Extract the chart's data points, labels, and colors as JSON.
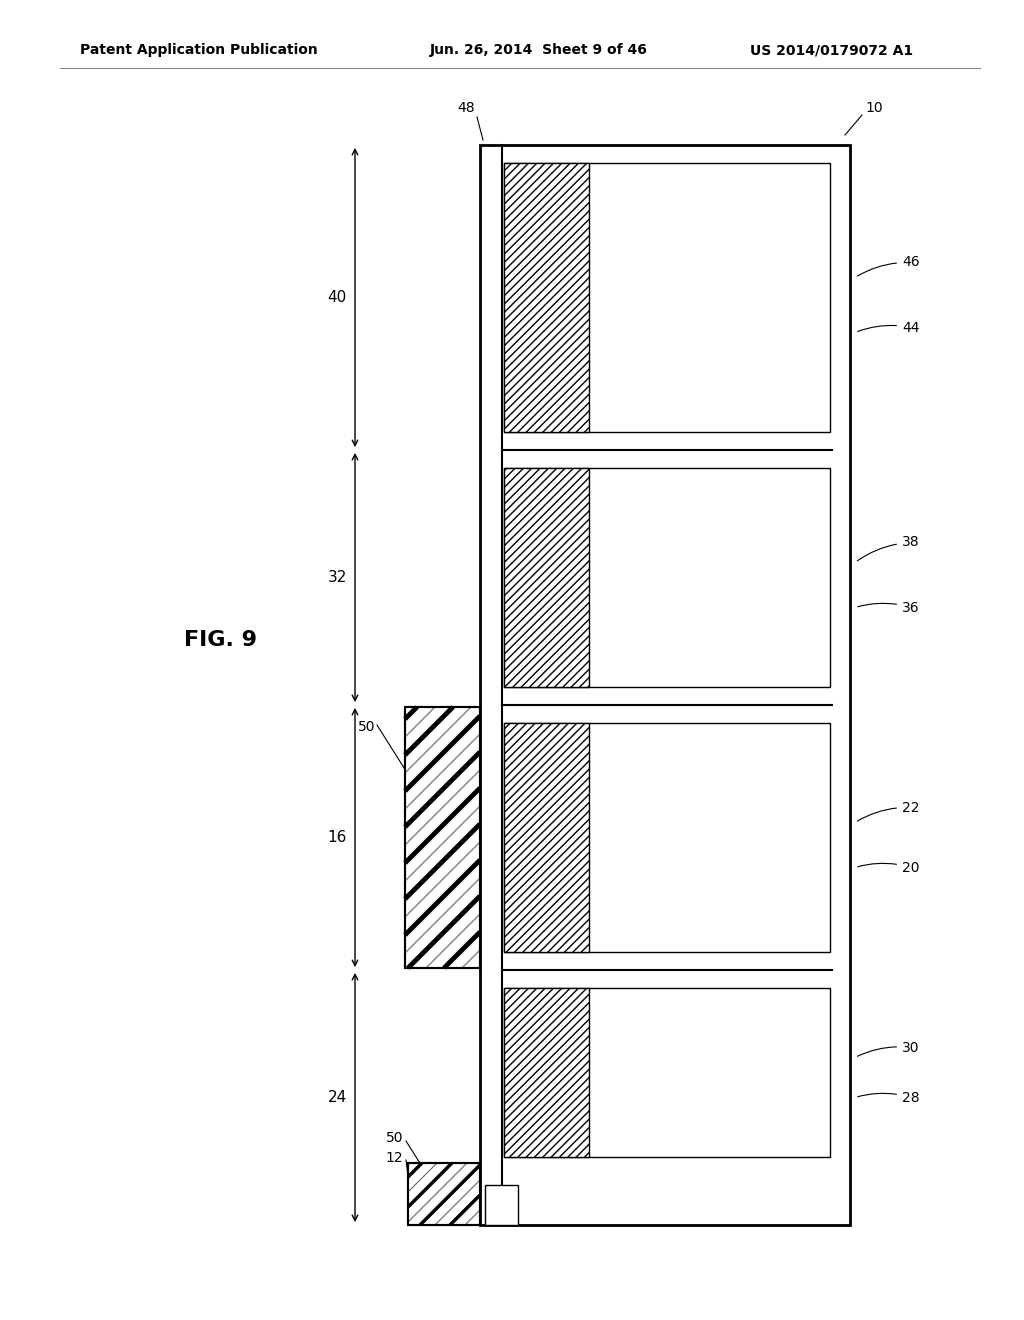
{
  "header_left": "Patent Application Publication",
  "header_mid": "Jun. 26, 2014  Sheet 9 of 46",
  "header_right": "US 2014/0179072 A1",
  "fig_label": "FIG. 9",
  "background": "#ffffff",
  "line_color": "#000000"
}
